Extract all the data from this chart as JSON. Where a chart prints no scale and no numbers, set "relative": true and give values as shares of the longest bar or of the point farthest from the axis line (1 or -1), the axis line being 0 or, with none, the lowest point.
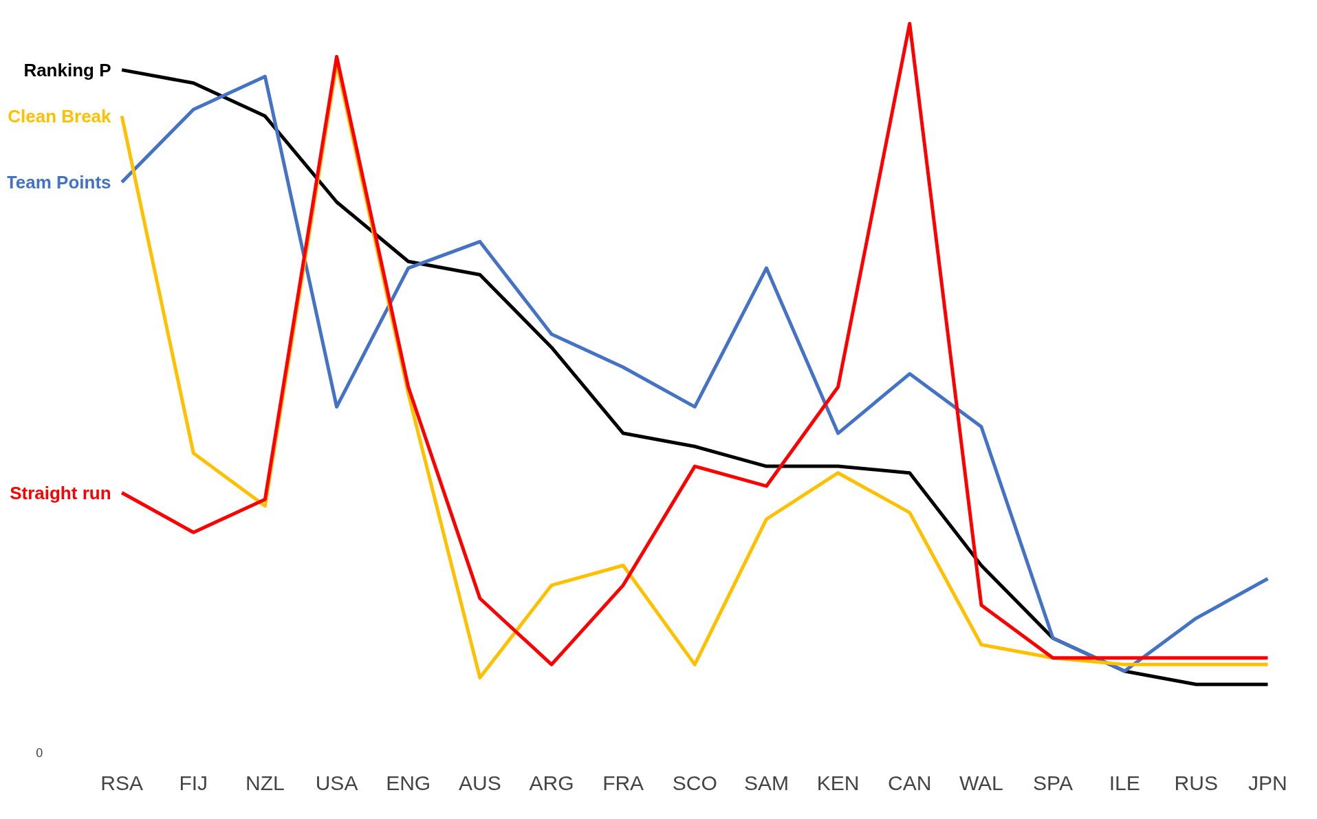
{
  "chart_data": {
    "type": "line",
    "relative": true,
    "categories": [
      "RSA",
      "FIJ",
      "NZL",
      "USA",
      "ENG",
      "AUS",
      "ARG",
      "FRA",
      "SCO",
      "SAM",
      "KEN",
      "CAN",
      "WAL",
      "SPA",
      "ILE",
      "RUS",
      "JPN"
    ],
    "series": [
      {
        "name": "Ranking P",
        "color": "#000000",
        "values": [
          0.93,
          0.91,
          0.86,
          0.73,
          0.64,
          0.62,
          0.51,
          0.38,
          0.36,
          0.33,
          0.33,
          0.32,
          0.18,
          0.07,
          0.02,
          0.0,
          0.0
        ]
      },
      {
        "name": "Team Points",
        "color": "#4472c4",
        "values": [
          0.76,
          0.87,
          0.92,
          0.42,
          0.63,
          0.67,
          0.53,
          0.48,
          0.42,
          0.63,
          0.38,
          0.47,
          0.39,
          0.07,
          0.02,
          0.1,
          0.16
        ]
      },
      {
        "name": "Clean Break",
        "color": "#ffc000",
        "values": [
          0.86,
          0.35,
          0.27,
          0.94,
          0.44,
          0.01,
          0.15,
          0.18,
          0.03,
          0.25,
          0.32,
          0.26,
          0.06,
          0.04,
          0.03,
          0.03,
          0.03
        ]
      },
      {
        "name": "Straight run",
        "color": "#ff0000",
        "values": [
          0.29,
          0.23,
          0.28,
          0.95,
          0.45,
          0.13,
          0.03,
          0.15,
          0.33,
          0.3,
          0.45,
          1.0,
          0.12,
          0.04,
          0.04,
          0.04,
          0.04
        ]
      }
    ],
    "annotations": [
      "0"
    ],
    "grid": false,
    "marker": "none",
    "line_style": "solid"
  }
}
